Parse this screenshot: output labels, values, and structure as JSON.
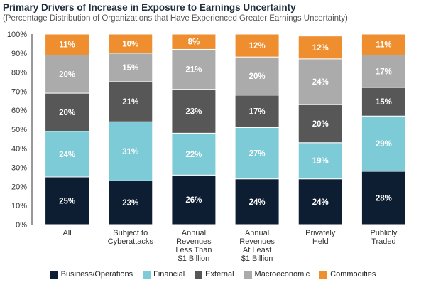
{
  "chart_data": {
    "type": "bar",
    "stacked": true,
    "title": "Primary Drivers of Increase in Exposure to Earnings Uncertainty",
    "subtitle": "(Percentage Distribution of Organizations that Have Experienced Greater Earnings Uncertainty)",
    "categories": [
      [
        "All"
      ],
      [
        "Subject to",
        "Cyberattacks"
      ],
      [
        "Annual",
        "Revenues",
        "Less Than",
        "$1 Billion"
      ],
      [
        "Annual",
        "Revenues",
        "At Least",
        "$1 Billion"
      ],
      [
        "Privately",
        "Held"
      ],
      [
        "Publicly",
        "Traded"
      ]
    ],
    "series": [
      {
        "name": "Business/Operations",
        "color": "#0d1e33",
        "values": [
          25,
          23,
          26,
          24,
          24,
          28
        ]
      },
      {
        "name": "Financial",
        "color": "#7ecbd8",
        "values": [
          24,
          31,
          22,
          27,
          19,
          29
        ]
      },
      {
        "name": "External",
        "color": "#575757",
        "values": [
          20,
          21,
          23,
          17,
          20,
          15
        ]
      },
      {
        "name": "Macroeconomic",
        "color": "#ababab",
        "values": [
          20,
          15,
          21,
          20,
          24,
          17
        ]
      },
      {
        "name": "Commodities",
        "color": "#ef8e2e",
        "values": [
          11,
          10,
          8,
          12,
          12,
          11
        ]
      }
    ],
    "yticks": [
      "0%",
      "10%",
      "20%",
      "30%",
      "40%",
      "50%",
      "60%",
      "70%",
      "80%",
      "90%",
      "100%"
    ],
    "ylim": [
      0,
      100
    ],
    "legend_position": "bottom"
  }
}
